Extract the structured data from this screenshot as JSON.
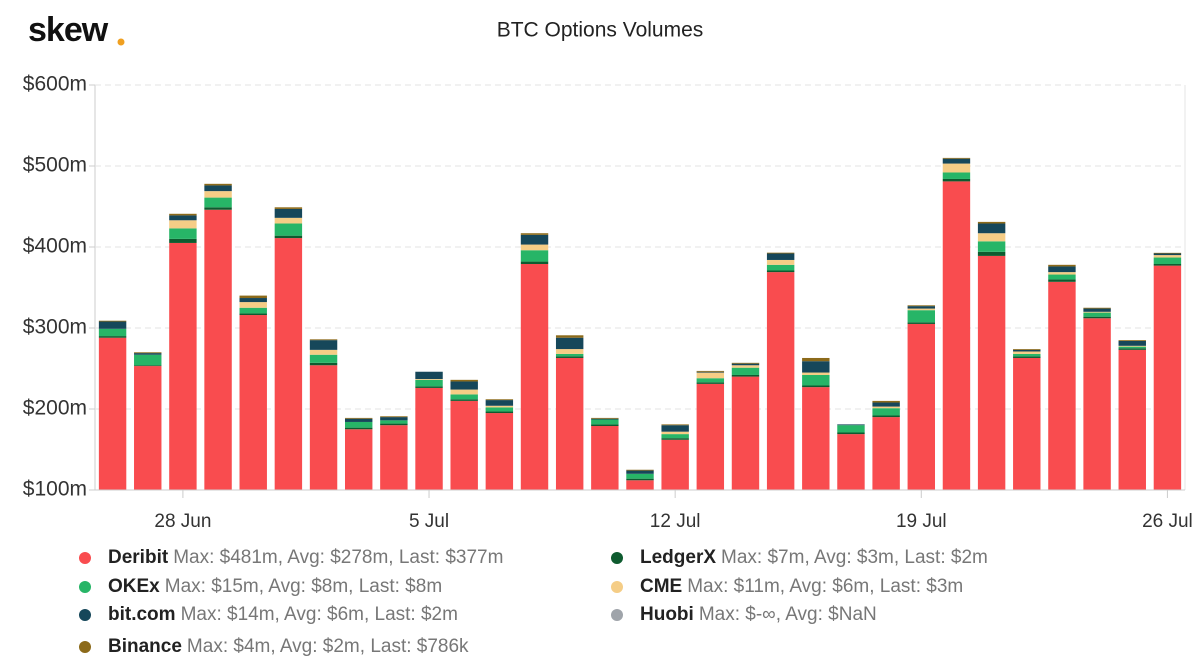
{
  "logo": "skew",
  "chart_data": {
    "type": "stacked_bar",
    "title": "BTC Options Volumes",
    "categories": [
      null,
      null,
      "28 Jun",
      null,
      null,
      null,
      null,
      null,
      null,
      "5 Jul",
      null,
      null,
      null,
      null,
      null,
      null,
      "12 Jul",
      null,
      null,
      null,
      null,
      null,
      null,
      "19 Jul",
      null,
      null,
      null,
      null,
      null,
      null,
      "26 Jul"
    ],
    "series": [
      {
        "name": "Deribit",
        "stats": "Max: $481m, Avg: $278m, Last: $377m",
        "color": "#f94c4f",
        "values": [
          288,
          253,
          405,
          446,
          316,
          411,
          254,
          175,
          180,
          226,
          210,
          195,
          379,
          263,
          179,
          112,
          162,
          231,
          240,
          369,
          227,
          169,
          190,
          305,
          481,
          389,
          263,
          357,
          312,
          273,
          377
        ]
      },
      {
        "name": "LedgerX",
        "stats": "Max: $7m, Avg: $3m, Last: $2m",
        "color": "#0e5b2f",
        "values": [
          2,
          1,
          5,
          3,
          2,
          3,
          3,
          2,
          2,
          2,
          2,
          2,
          3,
          2,
          2,
          2,
          2,
          2,
          2,
          2,
          2,
          2,
          2,
          2,
          3,
          5,
          2,
          3,
          2,
          2,
          2
        ]
      },
      {
        "name": "OKEx",
        "stats": "Max: $15m, Avg: $8m, Last: $8m",
        "color": "#27b567",
        "values": [
          9,
          13,
          13,
          12,
          7,
          15,
          10,
          7,
          4,
          8,
          6,
          5,
          14,
          3,
          6,
          6,
          5,
          5,
          9,
          7,
          13,
          9,
          9,
          15,
          8,
          13,
          3,
          6,
          5,
          2,
          8
        ]
      },
      {
        "name": "CME",
        "stats": "Max: $11m, Avg: $6m, Last: $3m",
        "color": "#f5cd86",
        "values": [
          0,
          0,
          10,
          8,
          7,
          7,
          6,
          0,
          0,
          1,
          6,
          2,
          7,
          6,
          0,
          0,
          3,
          7,
          3,
          6,
          3,
          0,
          2,
          2,
          11,
          10,
          3,
          3,
          1,
          1,
          3
        ]
      },
      {
        "name": "bit.com",
        "stats": "Max: $14m, Avg: $6m, Last: $2m",
        "color": "#16475a",
        "values": [
          9,
          2,
          6,
          7,
          5,
          11,
          12,
          4,
          4,
          9,
          10,
          7,
          12,
          14,
          1,
          4,
          8,
          1,
          2,
          8,
          14,
          1,
          5,
          3,
          6,
          12,
          2,
          7,
          4,
          6,
          2
        ]
      },
      {
        "name": "Binance",
        "stats": "Max: $4m, Avg: $2m, Last: $786k",
        "color": "#8c6a1a",
        "values": [
          1,
          1,
          2,
          2,
          3,
          2,
          1,
          1,
          1,
          0,
          2,
          1,
          2,
          3,
          1,
          1,
          1,
          1,
          1,
          1,
          4,
          0,
          2,
          1,
          1,
          2,
          1,
          2,
          1,
          1,
          0.786
        ]
      },
      {
        "name": "Huobi",
        "stats": "Max: $-∞, Avg: $NaN",
        "color": "#9fa4aa",
        "values": [
          null,
          null,
          null,
          null,
          null,
          null,
          null,
          null,
          null,
          null,
          null,
          null,
          null,
          null,
          null,
          null,
          null,
          null,
          null,
          null,
          null,
          null,
          null,
          null,
          null,
          null,
          null,
          null,
          null,
          null,
          null
        ]
      }
    ],
    "ylim": [
      100,
      600
    ],
    "yticks": [
      {
        "value": 100,
        "label": "$100m"
      },
      {
        "value": 200,
        "label": "$200m"
      },
      {
        "value": 300,
        "label": "$300m"
      },
      {
        "value": 400,
        "label": "$400m"
      },
      {
        "value": 500,
        "label": "$500m"
      },
      {
        "value": 600,
        "label": "$600m"
      }
    ],
    "grid": true
  }
}
